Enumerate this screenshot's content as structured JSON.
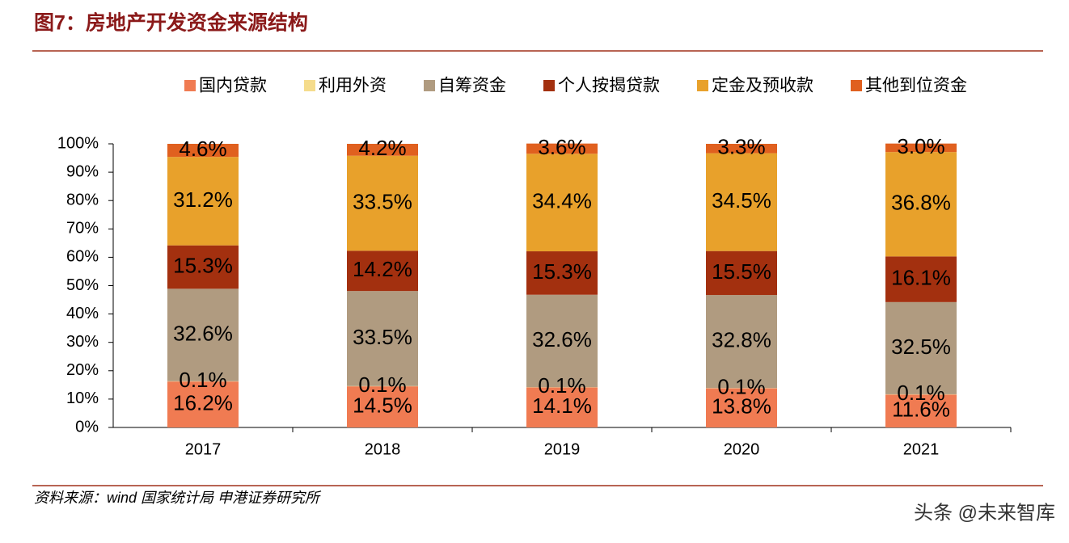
{
  "chart_data": {
    "type": "stacked_bar",
    "title": "图7：房地产开发资金来源结构",
    "categories": [
      "2017",
      "2018",
      "2019",
      "2020",
      "2021"
    ],
    "series": [
      {
        "name": "国内贷款",
        "color": "#f07b52",
        "values": [
          16.2,
          14.5,
          14.1,
          13.8,
          11.6
        ],
        "value_labels": [
          "16.2%",
          "14.5%",
          "14.1%",
          "13.8%",
          "11.6%"
        ]
      },
      {
        "name": "利用外资",
        "color": "#f5dc8c",
        "values": [
          0.1,
          0.1,
          0.1,
          0.1,
          0.1
        ],
        "value_labels": [
          "0.1%",
          "0.1%",
          "0.1%",
          "0.1%",
          "0.1%"
        ]
      },
      {
        "name": "自筹资金",
        "color": "#b09b80",
        "values": [
          32.6,
          33.5,
          32.6,
          32.8,
          32.5
        ],
        "value_labels": [
          "32.6%",
          "33.5%",
          "32.6%",
          "32.8%",
          "32.5%"
        ]
      },
      {
        "name": "个人按揭贷款",
        "color": "#a3300f",
        "values": [
          15.3,
          14.2,
          15.3,
          15.5,
          16.1
        ],
        "value_labels": [
          "15.3%",
          "14.2%",
          "15.3%",
          "15.5%",
          "16.1%"
        ]
      },
      {
        "name": "定金及预收款",
        "color": "#e8a12b",
        "values": [
          31.2,
          33.5,
          34.4,
          34.5,
          36.8
        ],
        "value_labels": [
          "31.2%",
          "33.5%",
          "34.4%",
          "34.5%",
          "36.8%"
        ]
      },
      {
        "name": "其他到位资金",
        "color": "#e0601f",
        "values": [
          4.6,
          4.2,
          3.6,
          3.3,
          3.0
        ],
        "value_labels": [
          "4.6%",
          "4.2%",
          "3.6%",
          "3.3%",
          "3.0%"
        ]
      }
    ],
    "ylim": [
      0,
      100
    ],
    "yticks": [
      {
        "value": 0,
        "label": "0%"
      },
      {
        "value": 10,
        "label": "10%"
      },
      {
        "value": 20,
        "label": "20%"
      },
      {
        "value": 30,
        "label": "30%"
      },
      {
        "value": 40,
        "label": "40%"
      },
      {
        "value": 50,
        "label": "50%"
      },
      {
        "value": 60,
        "label": "60%"
      },
      {
        "value": 70,
        "label": "70%"
      },
      {
        "value": 80,
        "label": "80%"
      },
      {
        "value": 90,
        "label": "90%"
      },
      {
        "value": 100,
        "label": "100%"
      }
    ],
    "grid": false,
    "legend": "top",
    "source": "资料来源：wind 国家统计局 申港证券研究所",
    "watermark": "头条 @未来智库"
  }
}
